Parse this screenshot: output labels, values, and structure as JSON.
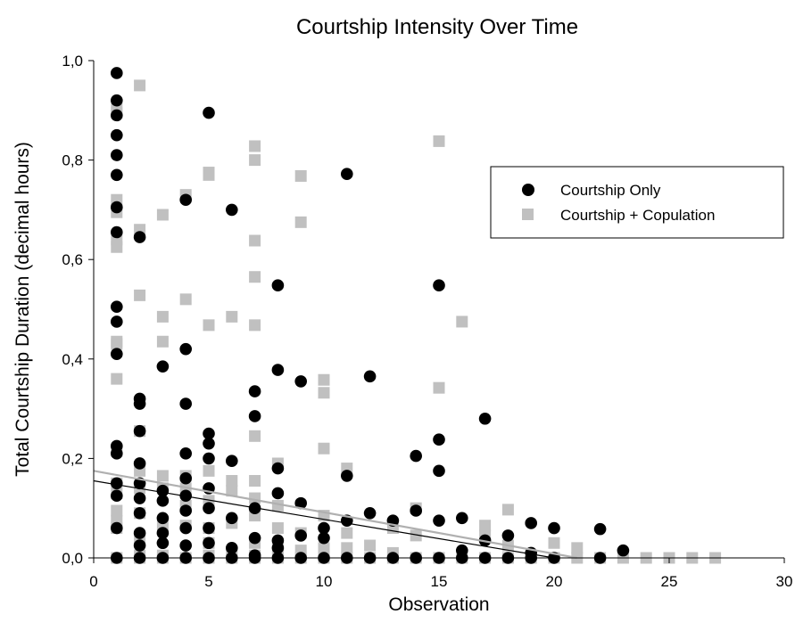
{
  "chart_data": {
    "type": "scatter",
    "title": "Courtship Intensity Over Time",
    "xlabel": "Observation",
    "ylabel": "Total Courtship Duration (decimal hours)",
    "xlim": [
      0,
      30
    ],
    "ylim": [
      0,
      1.0
    ],
    "xticks": [
      0,
      5,
      10,
      15,
      20,
      25,
      30
    ],
    "xtick_labels": [
      "0",
      "5",
      "10",
      "15",
      "20",
      "25",
      "30"
    ],
    "yticks": [
      0,
      0.2,
      0.4,
      0.6,
      0.8,
      1.0
    ],
    "ytick_labels": [
      "0,0",
      "0,2",
      "0,4",
      "0,6",
      "0,8",
      "1,0"
    ],
    "grid": false,
    "legend_position": "top-right",
    "series": [
      {
        "name": "Courtship Only",
        "marker": "circle",
        "color": "#000000",
        "trendline": {
          "x": [
            0,
            20
          ],
          "y": [
            0.155,
            0.0
          ]
        },
        "points": [
          [
            1,
            0.975
          ],
          [
            1,
            0.92
          ],
          [
            1,
            0.89
          ],
          [
            1,
            0.85
          ],
          [
            1,
            0.81
          ],
          [
            1,
            0.77
          ],
          [
            1,
            0.705
          ],
          [
            1,
            0.655
          ],
          [
            1,
            0.505
          ],
          [
            1,
            0.475
          ],
          [
            1,
            0.41
          ],
          [
            1,
            0.225
          ],
          [
            1,
            0.21
          ],
          [
            1,
            0.15
          ],
          [
            1,
            0.125
          ],
          [
            1,
            0.06
          ],
          [
            1,
            0.0
          ],
          [
            2,
            0.645
          ],
          [
            2,
            0.32
          ],
          [
            2,
            0.31
          ],
          [
            2,
            0.255
          ],
          [
            2,
            0.19
          ],
          [
            2,
            0.15
          ],
          [
            2,
            0.12
          ],
          [
            2,
            0.09
          ],
          [
            2,
            0.05
          ],
          [
            2,
            0.025
          ],
          [
            2,
            0.0
          ],
          [
            3,
            0.385
          ],
          [
            3,
            0.135
          ],
          [
            3,
            0.115
          ],
          [
            3,
            0.08
          ],
          [
            3,
            0.05
          ],
          [
            3,
            0.03
          ],
          [
            3,
            0.0
          ],
          [
            4,
            0.72
          ],
          [
            4,
            0.42
          ],
          [
            4,
            0.31
          ],
          [
            4,
            0.21
          ],
          [
            4,
            0.16
          ],
          [
            4,
            0.125
          ],
          [
            4,
            0.095
          ],
          [
            4,
            0.06
          ],
          [
            4,
            0.025
          ],
          [
            4,
            0.0
          ],
          [
            5,
            0.895
          ],
          [
            5,
            0.25
          ],
          [
            5,
            0.23
          ],
          [
            5,
            0.2
          ],
          [
            5,
            0.14
          ],
          [
            5,
            0.1
          ],
          [
            5,
            0.06
          ],
          [
            5,
            0.03
          ],
          [
            5,
            0.0
          ],
          [
            6,
            0.7
          ],
          [
            6,
            0.195
          ],
          [
            6,
            0.08
          ],
          [
            6,
            0.02
          ],
          [
            6,
            0.0
          ],
          [
            7,
            0.335
          ],
          [
            7,
            0.285
          ],
          [
            7,
            0.1
          ],
          [
            7,
            0.04
          ],
          [
            7,
            0.005
          ],
          [
            7,
            0.0
          ],
          [
            8,
            0.548
          ],
          [
            8,
            0.378
          ],
          [
            8,
            0.18
          ],
          [
            8,
            0.13
          ],
          [
            8,
            0.035
          ],
          [
            8,
            0.02
          ],
          [
            8,
            0.0
          ],
          [
            9,
            0.355
          ],
          [
            9,
            0.11
          ],
          [
            9,
            0.045
          ],
          [
            9,
            0.0
          ],
          [
            10,
            0.06
          ],
          [
            10,
            0.04
          ],
          [
            10,
            0.0
          ],
          [
            11,
            0.772
          ],
          [
            11,
            0.165
          ],
          [
            11,
            0.075
          ],
          [
            11,
            0.0
          ],
          [
            12,
            0.365
          ],
          [
            12,
            0.09
          ],
          [
            12,
            0.0
          ],
          [
            13,
            0.075
          ],
          [
            13,
            0.0
          ],
          [
            14,
            0.205
          ],
          [
            14,
            0.095
          ],
          [
            14,
            0.0
          ],
          [
            15,
            0.548
          ],
          [
            15,
            0.238
          ],
          [
            15,
            0.175
          ],
          [
            15,
            0.075
          ],
          [
            15,
            0.0
          ],
          [
            16,
            0.08
          ],
          [
            16,
            0.015
          ],
          [
            16,
            0.0
          ],
          [
            17,
            0.28
          ],
          [
            17,
            0.035
          ],
          [
            17,
            0.0
          ],
          [
            18,
            0.045
          ],
          [
            18,
            0.0
          ],
          [
            19,
            0.07
          ],
          [
            19,
            0.01
          ],
          [
            19,
            0.0
          ],
          [
            20,
            0.06
          ],
          [
            20,
            0.0
          ],
          [
            22,
            0.058
          ],
          [
            22,
            0.0
          ],
          [
            23,
            0.015
          ]
        ]
      },
      {
        "name": "Courtship + Copulation",
        "marker": "square",
        "color": "#c0c0c0",
        "trendline": {
          "x": [
            0,
            21
          ],
          "y": [
            0.175,
            0.0
          ]
        },
        "points": [
          [
            1,
            0.905
          ],
          [
            1,
            0.895
          ],
          [
            1,
            0.72
          ],
          [
            1,
            0.695
          ],
          [
            1,
            0.64
          ],
          [
            1,
            0.625
          ],
          [
            1,
            0.435
          ],
          [
            1,
            0.43
          ],
          [
            1,
            0.36
          ],
          [
            1,
            0.215
          ],
          [
            1,
            0.15
          ],
          [
            1,
            0.13
          ],
          [
            1,
            0.095
          ],
          [
            1,
            0.075
          ],
          [
            1,
            0.06
          ],
          [
            1,
            0.0
          ],
          [
            2,
            0.95
          ],
          [
            2,
            0.66
          ],
          [
            2,
            0.528
          ],
          [
            2,
            0.255
          ],
          [
            2,
            0.175
          ],
          [
            2,
            0.14
          ],
          [
            2,
            0.09
          ],
          [
            2,
            0.04
          ],
          [
            2,
            0.005
          ],
          [
            2,
            0.0
          ],
          [
            3,
            0.69
          ],
          [
            3,
            0.485
          ],
          [
            3,
            0.435
          ],
          [
            3,
            0.165
          ],
          [
            3,
            0.14
          ],
          [
            3,
            0.065
          ],
          [
            3,
            0.005
          ],
          [
            3,
            0.0
          ],
          [
            4,
            0.73
          ],
          [
            4,
            0.52
          ],
          [
            4,
            0.165
          ],
          [
            4,
            0.14
          ],
          [
            4,
            0.105
          ],
          [
            4,
            0.065
          ],
          [
            4,
            0.0
          ],
          [
            5,
            0.775
          ],
          [
            5,
            0.77
          ],
          [
            5,
            0.468
          ],
          [
            5,
            0.175
          ],
          [
            5,
            0.115
          ],
          [
            5,
            0.06
          ],
          [
            5,
            0.03
          ],
          [
            5,
            0.005
          ],
          [
            5,
            0.0
          ],
          [
            6,
            0.485
          ],
          [
            6,
            0.155
          ],
          [
            6,
            0.135
          ],
          [
            6,
            0.07
          ],
          [
            6,
            0.01
          ],
          [
            6,
            0.0
          ],
          [
            7,
            0.828
          ],
          [
            7,
            0.8
          ],
          [
            7,
            0.638
          ],
          [
            7,
            0.565
          ],
          [
            7,
            0.468
          ],
          [
            7,
            0.245
          ],
          [
            7,
            0.155
          ],
          [
            7,
            0.12
          ],
          [
            7,
            0.085
          ],
          [
            7,
            0.03
          ],
          [
            7,
            0.005
          ],
          [
            7,
            0.0
          ],
          [
            8,
            0.19
          ],
          [
            8,
            0.105
          ],
          [
            8,
            0.06
          ],
          [
            8,
            0.02
          ],
          [
            8,
            0.0
          ],
          [
            9,
            0.768
          ],
          [
            9,
            0.675
          ],
          [
            9,
            0.05
          ],
          [
            9,
            0.015
          ],
          [
            9,
            0.0
          ],
          [
            10,
            0.358
          ],
          [
            10,
            0.332
          ],
          [
            10,
            0.22
          ],
          [
            10,
            0.085
          ],
          [
            10,
            0.02
          ],
          [
            10,
            0.0
          ],
          [
            11,
            0.18
          ],
          [
            11,
            0.05
          ],
          [
            11,
            0.02
          ],
          [
            11,
            0.0
          ],
          [
            12,
            0.025
          ],
          [
            12,
            0.0
          ],
          [
            13,
            0.06
          ],
          [
            13,
            0.01
          ],
          [
            13,
            0.0
          ],
          [
            14,
            0.1
          ],
          [
            14,
            0.045
          ],
          [
            14,
            0.0
          ],
          [
            15,
            0.838
          ],
          [
            15,
            0.342
          ],
          [
            15,
            0.0
          ],
          [
            16,
            0.475
          ],
          [
            16,
            0.0
          ],
          [
            17,
            0.065
          ],
          [
            17,
            0.045
          ],
          [
            17,
            0.0
          ],
          [
            18,
            0.097
          ],
          [
            18,
            0.025
          ],
          [
            18,
            0.0
          ],
          [
            19,
            0.0
          ],
          [
            20,
            0.03
          ],
          [
            20,
            0.0
          ],
          [
            21,
            0.02
          ],
          [
            21,
            0.0
          ],
          [
            22,
            0.0
          ],
          [
            23,
            0.0
          ],
          [
            24,
            0.0
          ],
          [
            25,
            0.0
          ],
          [
            26,
            0.0
          ],
          [
            27,
            0.0
          ]
        ]
      }
    ]
  }
}
